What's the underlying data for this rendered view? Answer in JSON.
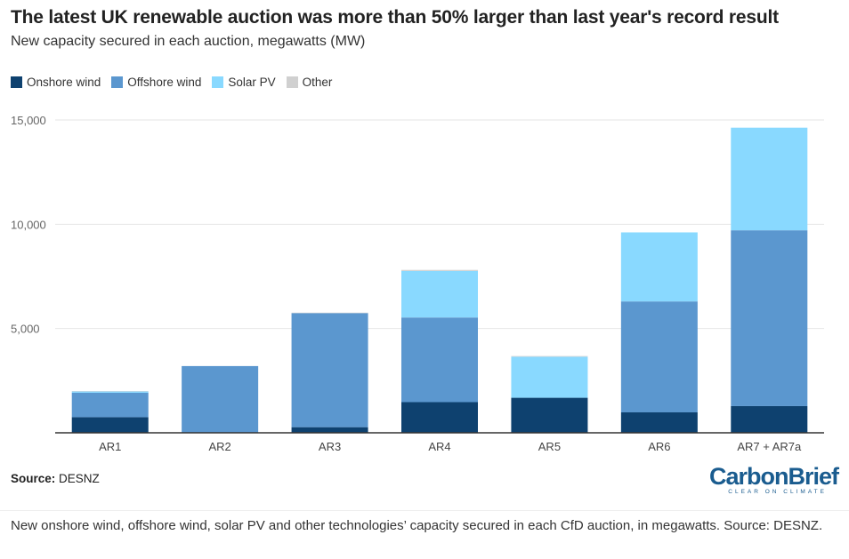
{
  "chart_data": {
    "type": "bar",
    "stacked": true,
    "title": "The latest UK renewable auction was more than 50% larger than last year's record result",
    "subtitle": "New capacity secured in each auction, megawatts (MW)",
    "xlabel": "",
    "ylabel": "",
    "ylim": [
      0,
      15000
    ],
    "yticks": [
      0,
      5000,
      10000,
      15000
    ],
    "ytick_labels": [
      "",
      "5,000",
      "10,000",
      "15,000"
    ],
    "grid": true,
    "legend": "top-left",
    "categories": [
      "AR1",
      "AR2",
      "AR3",
      "AR4",
      "AR5",
      "AR6",
      "AR7 + AR7a"
    ],
    "series": [
      {
        "name": "Onshore wind",
        "color": "#0e416f",
        "values": [
          750,
          0,
          270,
          1470,
          1680,
          980,
          1280
        ]
      },
      {
        "name": "Offshore wind",
        "color": "#5b97cf",
        "values": [
          1170,
          3200,
          5470,
          4060,
          0,
          5320,
          8430
        ]
      },
      {
        "name": "Solar PV",
        "color": "#89d9ff",
        "values": [
          60,
          0,
          0,
          2230,
          1970,
          3310,
          4920
        ]
      },
      {
        "name": "Other",
        "color": "#d0d0d0",
        "values": [
          20,
          0,
          20,
          50,
          30,
          0,
          0
        ]
      }
    ]
  },
  "source_label": "Source:",
  "source_value": "DESNZ",
  "logo": {
    "text": "CarbonBrief",
    "tagline": "CLEAR ON CLIMATE"
  },
  "caption": "New onshore wind, offshore wind, solar PV and other technologies’ capacity secured in each CfD auction, in megawatts. Source: DESNZ."
}
